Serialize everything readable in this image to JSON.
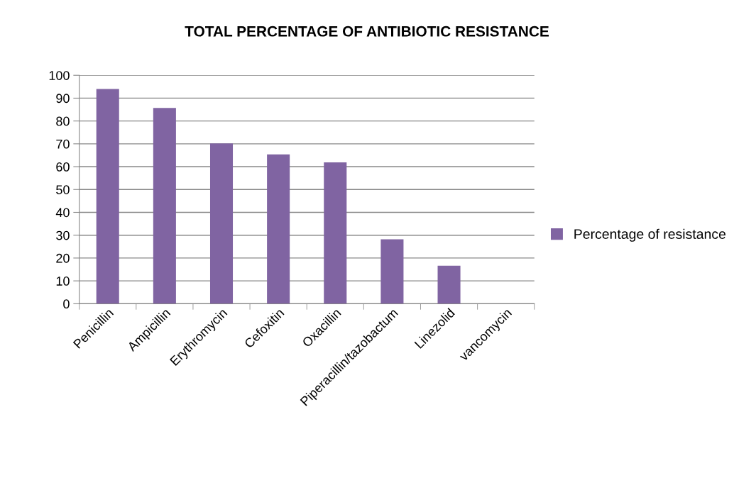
{
  "chart_data": {
    "type": "bar",
    "title": "TOTAL PERCENTAGE OF ANTIBIOTIC RESISTANCE",
    "categories": [
      "Penicillin",
      "Ampicillin",
      "Erythromycin",
      "Cefoxitin",
      "Oxacillin",
      "Piperacillin/tazobactum",
      "Linezolid",
      "vancomycin"
    ],
    "series": [
      {
        "name": "Percentage of resistance",
        "color": "#8064a2",
        "values": [
          94.0,
          85.7,
          70.2,
          65.4,
          61.9,
          28.2,
          16.6,
          0
        ]
      }
    ],
    "ylim": [
      0,
      100
    ],
    "yticks": [
      0,
      10,
      20,
      30,
      40,
      50,
      60,
      70,
      80,
      90,
      100
    ],
    "grid": "y",
    "legend": "right"
  }
}
